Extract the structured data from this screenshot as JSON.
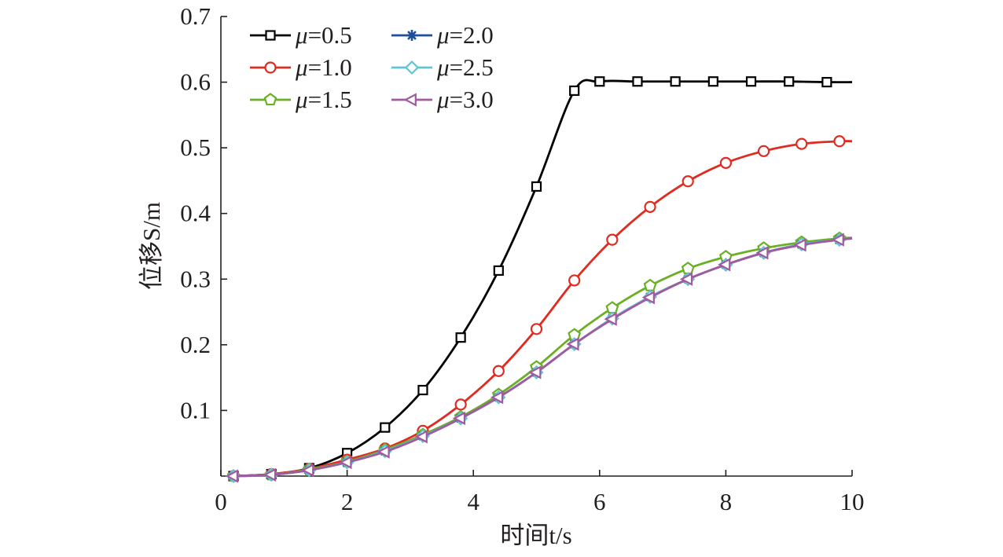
{
  "chart_data": {
    "type": "line",
    "title": "",
    "xlabel": "时间t/s",
    "ylabel": "位移S/m",
    "xlim": [
      0,
      10
    ],
    "ylim": [
      0,
      0.7
    ],
    "xticks": [
      "0",
      "2",
      "4",
      "6",
      "8",
      "10"
    ],
    "yticks": [
      "0.1",
      "0.2",
      "0.3",
      "0.4",
      "0.5",
      "0.6",
      "0.7"
    ],
    "grid": false,
    "legend_position": "top-left",
    "series": [
      {
        "name": "μ=0.5",
        "color": "#000000",
        "marker": "square",
        "x": [
          0.2,
          0.8,
          1.4,
          2.0,
          2.6,
          3.2,
          3.8,
          4.4,
          5.0,
          5.6,
          6.0,
          6.6,
          7.2,
          7.8,
          8.4,
          9.0,
          9.6,
          10.0
        ],
        "y": [
          0.0,
          0.003,
          0.012,
          0.035,
          0.074,
          0.131,
          0.211,
          0.313,
          0.441,
          0.587,
          0.601,
          0.601,
          0.601,
          0.601,
          0.601,
          0.601,
          0.6,
          0.6
        ],
        "marker_x": [
          0.2,
          0.8,
          1.4,
          2.0,
          2.6,
          3.2,
          3.8,
          4.4,
          5.0,
          5.6,
          6.0,
          6.6,
          7.2,
          7.8,
          8.4,
          9.0,
          9.6
        ]
      },
      {
        "name": "μ=1.0",
        "color": "#e02b20",
        "marker": "circle",
        "x": [
          0.2,
          0.8,
          1.4,
          2.0,
          2.6,
          3.2,
          3.8,
          4.4,
          5.0,
          5.6,
          6.2,
          6.8,
          7.4,
          8.0,
          8.6,
          9.2,
          9.8,
          10.0
        ],
        "y": [
          0.0,
          0.003,
          0.011,
          0.025,
          0.042,
          0.069,
          0.109,
          0.16,
          0.224,
          0.298,
          0.36,
          0.41,
          0.449,
          0.477,
          0.495,
          0.506,
          0.51,
          0.51
        ],
        "marker_x": [
          0.2,
          0.8,
          1.4,
          2.0,
          2.6,
          3.2,
          3.8,
          4.4,
          5.0,
          5.6,
          6.2,
          6.8,
          7.4,
          8.0,
          8.6,
          9.2,
          9.8
        ]
      },
      {
        "name": "μ=1.5",
        "color": "#6ab023",
        "marker": "pentagon",
        "x": [
          0.2,
          0.8,
          1.4,
          2.0,
          2.6,
          3.2,
          3.8,
          4.4,
          5.0,
          5.6,
          6.2,
          6.8,
          7.4,
          8.0,
          8.6,
          9.2,
          9.8,
          10.0
        ],
        "y": [
          0.0,
          0.002,
          0.01,
          0.022,
          0.04,
          0.063,
          0.09,
          0.124,
          0.166,
          0.215,
          0.256,
          0.29,
          0.316,
          0.334,
          0.347,
          0.356,
          0.362,
          0.363
        ],
        "marker_x": [
          0.2,
          0.8,
          1.4,
          2.0,
          2.6,
          3.2,
          3.8,
          4.4,
          5.0,
          5.6,
          6.2,
          6.8,
          7.4,
          8.0,
          8.6,
          9.2,
          9.8
        ]
      },
      {
        "name": "μ=2.0",
        "color": "#1f4e9c",
        "marker": "star",
        "x": [
          0.2,
          0.8,
          1.4,
          2.0,
          2.6,
          3.2,
          3.8,
          4.4,
          5.0,
          5.6,
          6.2,
          6.8,
          7.4,
          8.0,
          8.6,
          9.2,
          9.8,
          10.0
        ],
        "y": [
          0.0,
          0.002,
          0.009,
          0.021,
          0.038,
          0.061,
          0.088,
          0.12,
          0.158,
          0.201,
          0.24,
          0.273,
          0.3,
          0.322,
          0.34,
          0.353,
          0.36,
          0.362
        ],
        "marker_x": [
          0.2,
          0.8,
          1.4,
          2.0,
          2.6,
          3.2,
          3.8,
          4.4,
          5.0,
          5.6,
          6.2,
          6.8,
          7.4,
          8.0,
          8.6,
          9.2,
          9.8
        ]
      },
      {
        "name": "μ=2.5",
        "color": "#5fc5d5",
        "marker": "diamond",
        "x": [
          0.2,
          0.8,
          1.4,
          2.0,
          2.6,
          3.2,
          3.8,
          4.4,
          5.0,
          5.6,
          6.2,
          6.8,
          7.4,
          8.0,
          8.6,
          9.2,
          9.8,
          10.0
        ],
        "y": [
          0.0,
          0.002,
          0.009,
          0.021,
          0.038,
          0.061,
          0.088,
          0.12,
          0.158,
          0.201,
          0.24,
          0.273,
          0.3,
          0.322,
          0.34,
          0.353,
          0.36,
          0.362
        ],
        "marker_x": [
          0.2,
          0.8,
          1.4,
          2.0,
          2.6,
          3.2,
          3.8,
          4.4,
          5.0,
          5.6,
          6.2,
          6.8,
          7.4,
          8.0,
          8.6,
          9.2,
          9.8
        ]
      },
      {
        "name": "μ=3.0",
        "color": "#a15aa0",
        "marker": "triangle-left",
        "x": [
          0.2,
          0.8,
          1.4,
          2.0,
          2.6,
          3.2,
          3.8,
          4.4,
          5.0,
          5.6,
          6.2,
          6.8,
          7.4,
          8.0,
          8.6,
          9.2,
          9.8,
          10.0
        ],
        "y": [
          0.0,
          0.002,
          0.009,
          0.021,
          0.037,
          0.06,
          0.088,
          0.12,
          0.158,
          0.201,
          0.239,
          0.272,
          0.3,
          0.322,
          0.34,
          0.352,
          0.36,
          0.362
        ],
        "marker_x": [
          0.2,
          0.8,
          1.4,
          2.0,
          2.6,
          3.2,
          3.8,
          4.4,
          5.0,
          5.6,
          6.2,
          6.8,
          7.4,
          8.0,
          8.6,
          9.2,
          9.8
        ]
      }
    ]
  }
}
